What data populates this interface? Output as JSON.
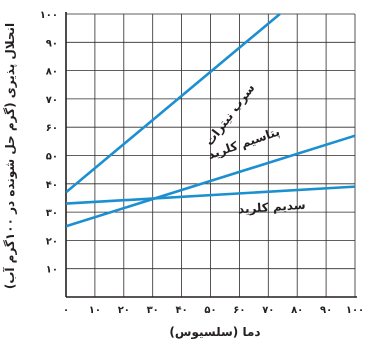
{
  "chart_data": {
    "type": "line",
    "xlabel": "دما (سلسیوس)",
    "ylabel": "انحلال پذیری (گرم حل شونده در ۱۰۰گرم آب)",
    "xlim": [
      0,
      100
    ],
    "ylim": [
      0,
      100
    ],
    "x_ticks": [
      0,
      10,
      20,
      30,
      40,
      50,
      60,
      70,
      80,
      90,
      100
    ],
    "x_tick_labels": [
      "۰",
      "۱۰",
      "۲۰",
      "۳۰",
      "۴۰",
      "۵۰",
      "۶۰",
      "۷۰",
      "۸۰",
      "۹۰",
      "۱۰۰"
    ],
    "y_ticks": [
      0,
      10,
      20,
      30,
      40,
      50,
      60,
      70,
      80,
      90,
      100
    ],
    "y_tick_labels": [
      "",
      "۱۰",
      "۲۰",
      "۳۰",
      "۴۰",
      "۵۰",
      "۶۰",
      "۷۰",
      "۸۰",
      "۹۰",
      "۱۰۰"
    ],
    "grid": true,
    "colors": {
      "series": "#1b8fd0",
      "grid": "#2e2a2b",
      "axis": "#231f20"
    },
    "series": [
      {
        "name": "سرب نیترات",
        "x": [
          0,
          74
        ],
        "y": [
          37,
          100
        ]
      },
      {
        "name": "پتاسیم کلرید",
        "x": [
          0,
          100
        ],
        "y": [
          25,
          57
        ]
      },
      {
        "name": "سدیم کلرید",
        "x": [
          0,
          100
        ],
        "y": [
          33,
          39
        ]
      }
    ]
  }
}
